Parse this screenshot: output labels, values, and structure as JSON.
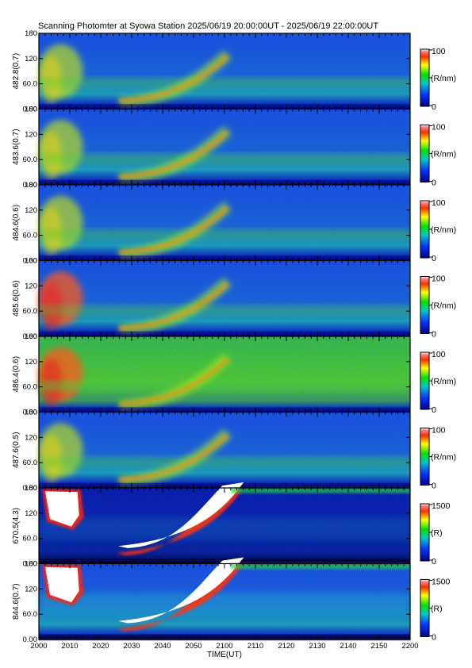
{
  "title": "Scanning Photomter at Syowa Station 2025/06/19 20:00:00UT - 2025/06/19 22:00:00UT",
  "chart_data": {
    "type": "heatmap",
    "title": "Scanning Photomter at Syowa Station 2025/06/19 20:00:00UT - 2025/06/19 22:00:00UT",
    "xlabel": "TIME(UT)",
    "x_ticks": [
      "2000",
      "2010",
      "2020",
      "2030",
      "2040",
      "2050",
      "2100",
      "2110",
      "2120",
      "2130",
      "2140",
      "2150",
      "2200"
    ],
    "xlim": [
      "2000",
      "2200"
    ],
    "y_ticks": [
      "0.00",
      "60.0",
      "120",
      "180"
    ],
    "ylim": [
      0,
      180
    ],
    "colormap": "rainbow (blue-green-yellow-red-white)",
    "panels": [
      {
        "channel": "482.8(0.7)",
        "unit": "(R/nm)",
        "cmin": "0",
        "cmax": "100"
      },
      {
        "channel": "483.6(0.7)",
        "unit": "(R/nm)",
        "cmin": "0",
        "cmax": "100"
      },
      {
        "channel": "484.6(0.6)",
        "unit": "(R/nm)",
        "cmin": "0",
        "cmax": "100"
      },
      {
        "channel": "485.6(0.6)",
        "unit": "(R/nm)",
        "cmin": "0",
        "cmax": "100"
      },
      {
        "channel": "486.4(0.6)",
        "unit": "(R/nm)",
        "cmin": "0",
        "cmax": "100"
      },
      {
        "channel": "487.6(0.5)",
        "unit": "(R/nm)",
        "cmin": "0",
        "cmax": "100"
      },
      {
        "channel": "670.5(4.3)",
        "unit": "(R)",
        "cmin": "0",
        "cmax": "1500"
      },
      {
        "channel": "844.6(0.7)",
        "unit": "(R)",
        "cmin": "0",
        "cmax": "1500"
      }
    ]
  }
}
